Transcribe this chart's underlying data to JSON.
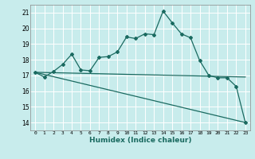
{
  "xlabel": "Humidex (Indice chaleur)",
  "bg_color": "#c8ecec",
  "grid_color": "#ffffff",
  "line_color": "#1a6a60",
  "xlim": [
    -0.5,
    23.5
  ],
  "ylim": [
    13.5,
    21.5
  ],
  "xticks": [
    0,
    1,
    2,
    3,
    4,
    5,
    6,
    7,
    8,
    9,
    10,
    11,
    12,
    13,
    14,
    15,
    16,
    17,
    18,
    19,
    20,
    21,
    22,
    23
  ],
  "yticks": [
    14,
    15,
    16,
    17,
    18,
    19,
    20,
    21
  ],
  "curve1_x": [
    0,
    1,
    2,
    3,
    4,
    5,
    6,
    7,
    8,
    9,
    10,
    11,
    12,
    13,
    14,
    15,
    16,
    17,
    18,
    19,
    20,
    21,
    22,
    23
  ],
  "curve1_y": [
    17.2,
    16.9,
    17.25,
    17.7,
    18.35,
    17.35,
    17.3,
    18.15,
    18.2,
    18.5,
    19.45,
    19.35,
    19.65,
    19.6,
    21.1,
    20.35,
    19.65,
    19.4,
    17.95,
    17.0,
    16.85,
    16.85,
    16.3,
    14.0
  ],
  "curve2_x": [
    0,
    23
  ],
  "curve2_y": [
    17.2,
    14.0
  ],
  "curve3_x": [
    0,
    23
  ],
  "curve3_y": [
    17.2,
    16.9
  ]
}
